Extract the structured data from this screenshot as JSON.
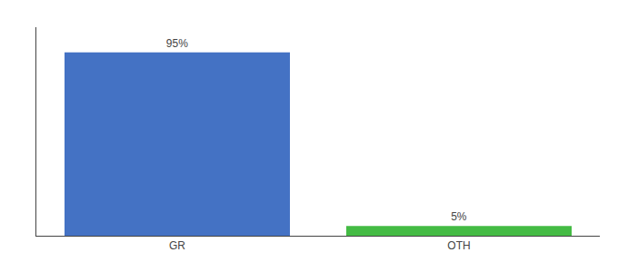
{
  "chart_data": {
    "type": "bar",
    "categories": [
      "GR",
      "OTH"
    ],
    "values": [
      95,
      5
    ],
    "value_labels": [
      "95%",
      "5%"
    ],
    "colors": [
      "#4472c4",
      "#44bb44"
    ],
    "data_labels": true,
    "ylim": [
      0,
      108
    ],
    "tick_labels": "x",
    "grid": false
  }
}
